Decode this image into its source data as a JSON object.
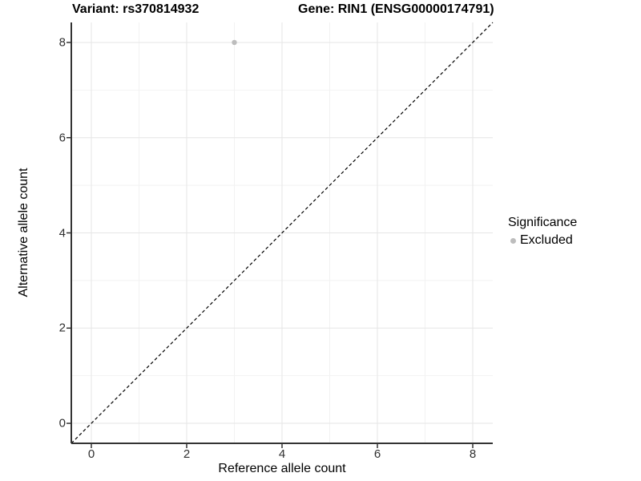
{
  "chart_data": {
    "type": "scatter",
    "title_left": "Variant: rs370814932",
    "title_right": "Gene: RIN1 (ENSG00000174791)",
    "xlabel": "Reference allele count",
    "ylabel": "Alternative allele count",
    "xlim": [
      -0.42,
      8.42
    ],
    "ylim": [
      -0.42,
      8.42
    ],
    "xticks": [
      0,
      2,
      4,
      6,
      8
    ],
    "yticks": [
      0,
      2,
      4,
      6,
      8
    ],
    "minor_xticks": [
      1,
      3,
      5,
      7
    ],
    "minor_yticks": [
      1,
      3,
      5,
      7
    ],
    "grid": true,
    "identity_line": {
      "slope": 1,
      "intercept": 0,
      "style": "dashed",
      "color": "#000000"
    },
    "series": [
      {
        "name": "Excluded",
        "color": "#bdbdbd",
        "points": [
          {
            "x": 3,
            "y": 8
          }
        ]
      }
    ],
    "legend": {
      "title": "Significance",
      "position": "right",
      "items": [
        {
          "label": "Excluded",
          "color": "#bdbdbd"
        }
      ]
    },
    "colors": {
      "axis_line": "#333333",
      "tick_mark": "#333333",
      "grid_major": "#e6e6e6",
      "grid_minor": "#f2f2f2",
      "background": "#ffffff"
    }
  }
}
